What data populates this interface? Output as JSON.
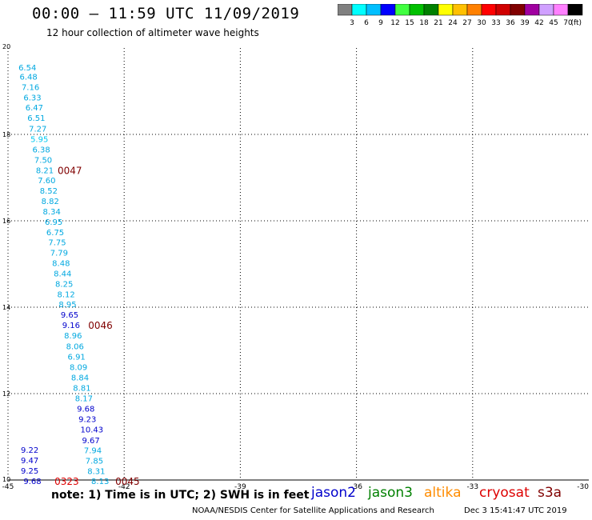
{
  "header": {
    "title": "00:00 – 11:59 UTC 11/09/2019",
    "subtitle": "12 hour collection of altimeter wave heights"
  },
  "colorbar": {
    "colors": [
      "#808080",
      "#00ffff",
      "#00bfff",
      "#0000ff",
      "#40ff40",
      "#00c000",
      "#008000",
      "#ffff00",
      "#ffc000",
      "#ff8000",
      "#ff0000",
      "#d00000",
      "#800000",
      "#a000a0",
      "#d0a0ff",
      "#ff80ff",
      "#000000"
    ],
    "labels": [
      "3",
      "6",
      "9",
      "12",
      "15",
      "18",
      "21",
      "24",
      "27",
      "30",
      "33",
      "36",
      "39",
      "42",
      "45",
      "70"
    ],
    "unit": "(ft)"
  },
  "footer": {
    "note": "note:  1) Time is in UTC;  2) SWH is in feet",
    "credit": "NOAA/NESDIS Center for Satellite Applications and Research",
    "timestamp": "Dec  3 15:41:47 UTC 2019"
  },
  "legend": [
    {
      "name": "jason2",
      "color": "#0000cc"
    },
    {
      "name": "jason3",
      "color": "#008000"
    },
    {
      "name": "altika",
      "color": "#ff8c00"
    },
    {
      "name": "cryosat",
      "color": "#dd0000"
    },
    {
      "name": "s3a",
      "color": "#800000"
    }
  ],
  "chart_data": {
    "type": "scatter",
    "title": "00:00 – 11:59 UTC 11/09/2019",
    "xlim": [
      -45,
      -30
    ],
    "ylim": [
      10,
      20
    ],
    "x_ticks": [
      "-45",
      "-42",
      "-39",
      "-36",
      "-33",
      "-30"
    ],
    "y_ticks": [
      "10",
      "12",
      "14",
      "16",
      "18",
      "20"
    ],
    "grid": true,
    "swh_points": [
      {
        "x": -44.73,
        "y": 19.56,
        "label": "6.54",
        "color": "#00a8e0"
      },
      {
        "x": -44.7,
        "y": 19.34,
        "label": "6.48",
        "color": "#00a8e0"
      },
      {
        "x": -44.65,
        "y": 19.1,
        "label": "7.16",
        "color": "#00a8e0"
      },
      {
        "x": -44.6,
        "y": 18.86,
        "label": "6.33",
        "color": "#00a8e0"
      },
      {
        "x": -44.55,
        "y": 18.63,
        "label": "6.47",
        "color": "#00a8e0"
      },
      {
        "x": -44.5,
        "y": 18.39,
        "label": "6.51",
        "color": "#00a8e0"
      },
      {
        "x": -44.46,
        "y": 18.14,
        "label": "7.27",
        "color": "#00a8e0"
      },
      {
        "x": -44.42,
        "y": 17.9,
        "label": "5.95",
        "color": "#00c8f0"
      },
      {
        "x": -44.37,
        "y": 17.66,
        "label": "6.38",
        "color": "#00a8e0"
      },
      {
        "x": -44.32,
        "y": 17.42,
        "label": "7.50",
        "color": "#00a8e0"
      },
      {
        "x": -44.28,
        "y": 17.18,
        "label": "8.21",
        "color": "#00a8e0"
      },
      {
        "x": -44.23,
        "y": 16.94,
        "label": "7.60",
        "color": "#00a8e0"
      },
      {
        "x": -44.18,
        "y": 16.7,
        "label": "8.52",
        "color": "#00a8e0"
      },
      {
        "x": -44.14,
        "y": 16.46,
        "label": "8.82",
        "color": "#00a8e0"
      },
      {
        "x": -44.1,
        "y": 16.22,
        "label": "8.34",
        "color": "#00a8e0"
      },
      {
        "x": -44.05,
        "y": 15.98,
        "label": "6.95",
        "color": "#00a8e0"
      },
      {
        "x": -44.01,
        "y": 15.74,
        "label": "6.75",
        "color": "#00a8e0"
      },
      {
        "x": -43.96,
        "y": 15.51,
        "label": "7.75",
        "color": "#00a8e0"
      },
      {
        "x": -43.91,
        "y": 15.27,
        "label": "7.79",
        "color": "#00a8e0"
      },
      {
        "x": -43.86,
        "y": 15.03,
        "label": "8.48",
        "color": "#00a8e0"
      },
      {
        "x": -43.82,
        "y": 14.79,
        "label": "8.44",
        "color": "#00a8e0"
      },
      {
        "x": -43.78,
        "y": 14.55,
        "label": "8.25",
        "color": "#00a8e0"
      },
      {
        "x": -43.73,
        "y": 14.31,
        "label": "8.12",
        "color": "#00a8e0"
      },
      {
        "x": -43.69,
        "y": 14.07,
        "label": "8.95",
        "color": "#00a8e0"
      },
      {
        "x": -43.64,
        "y": 13.83,
        "label": "9.65",
        "color": "#0000cc"
      },
      {
        "x": -43.6,
        "y": 13.59,
        "label": "9.16",
        "color": "#0000cc"
      },
      {
        "x": -43.55,
        "y": 13.35,
        "label": "8.96",
        "color": "#00a8e0"
      },
      {
        "x": -43.5,
        "y": 13.1,
        "label": "8.06",
        "color": "#00a8e0"
      },
      {
        "x": -43.46,
        "y": 12.86,
        "label": "6.91",
        "color": "#00a8e0"
      },
      {
        "x": -43.41,
        "y": 12.62,
        "label": "8.09",
        "color": "#00a8e0"
      },
      {
        "x": -43.37,
        "y": 12.38,
        "label": "8.84",
        "color": "#00a8e0"
      },
      {
        "x": -43.32,
        "y": 12.14,
        "label": "8.81",
        "color": "#00a8e0"
      },
      {
        "x": -43.27,
        "y": 11.9,
        "label": "8.17",
        "color": "#00a8e0"
      },
      {
        "x": -43.22,
        "y": 11.66,
        "label": "9.68",
        "color": "#0000cc"
      },
      {
        "x": -43.18,
        "y": 11.42,
        "label": "9.23",
        "color": "#0000cc"
      },
      {
        "x": -43.13,
        "y": 11.18,
        "label": "10.43",
        "color": "#0000cc"
      },
      {
        "x": -43.09,
        "y": 10.93,
        "label": "9.67",
        "color": "#0000cc"
      },
      {
        "x": -43.04,
        "y": 10.69,
        "label": "7.94",
        "color": "#00a8e0"
      },
      {
        "x": -43.0,
        "y": 10.45,
        "label": "7.85",
        "color": "#00a8e0"
      },
      {
        "x": -42.95,
        "y": 10.21,
        "label": "8.31",
        "color": "#00a8e0"
      },
      {
        "x": -42.85,
        "y": 9.98,
        "label": "8.13",
        "color": "#00a8e0"
      },
      {
        "x": -44.67,
        "y": 10.7,
        "label": "9.22",
        "color": "#0000cc"
      },
      {
        "x": -44.67,
        "y": 10.46,
        "label": "9.47",
        "color": "#0000cc"
      },
      {
        "x": -44.67,
        "y": 10.22,
        "label": "9.25",
        "color": "#0000cc"
      },
      {
        "x": -44.6,
        "y": 9.98,
        "label": "9.68",
        "color": "#0000cc"
      }
    ],
    "time_labels": [
      {
        "x": -43.72,
        "y": 17.18,
        "label": "0047",
        "color": "#800000"
      },
      {
        "x": -42.93,
        "y": 13.59,
        "label": "0046",
        "color": "#800000"
      },
      {
        "x": -43.8,
        "y": 9.98,
        "label": "0323",
        "color": "#dd0000"
      },
      {
        "x": -42.23,
        "y": 9.98,
        "label": "0045",
        "color": "#800000"
      }
    ]
  }
}
